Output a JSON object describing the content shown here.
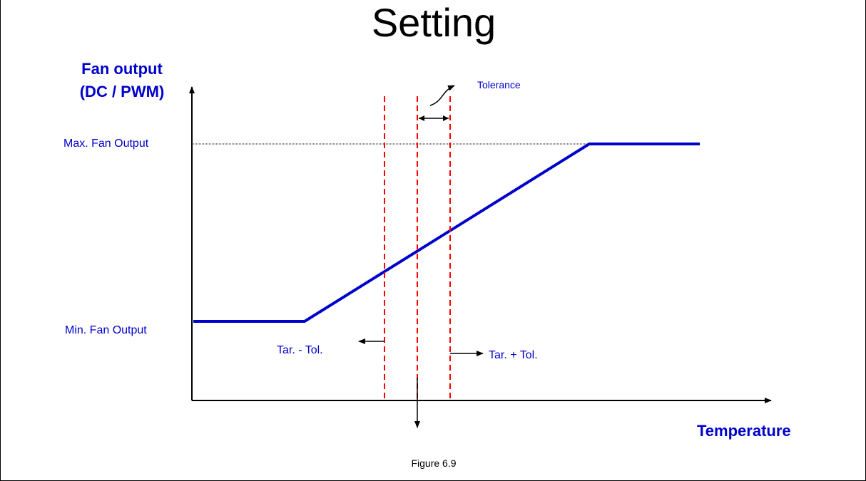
{
  "title": "Setting",
  "y_axis": {
    "line1": "Fan output",
    "line2": "(DC / PWM)"
  },
  "x_axis": {
    "label": "Temperature"
  },
  "levels": {
    "max": "Max. Fan Output",
    "min": "Min. Fan Output"
  },
  "annotations": {
    "tolerance": "Tolerance",
    "tar_minus_tol": "Tar. - Tol.",
    "tar_plus_tol": "Tar. + Tol."
  },
  "caption": "Figure 6.9",
  "colors": {
    "curve": "#0000cc",
    "dashed": "#ff0000",
    "axis": "#000000",
    "text": "#0000cc"
  }
}
